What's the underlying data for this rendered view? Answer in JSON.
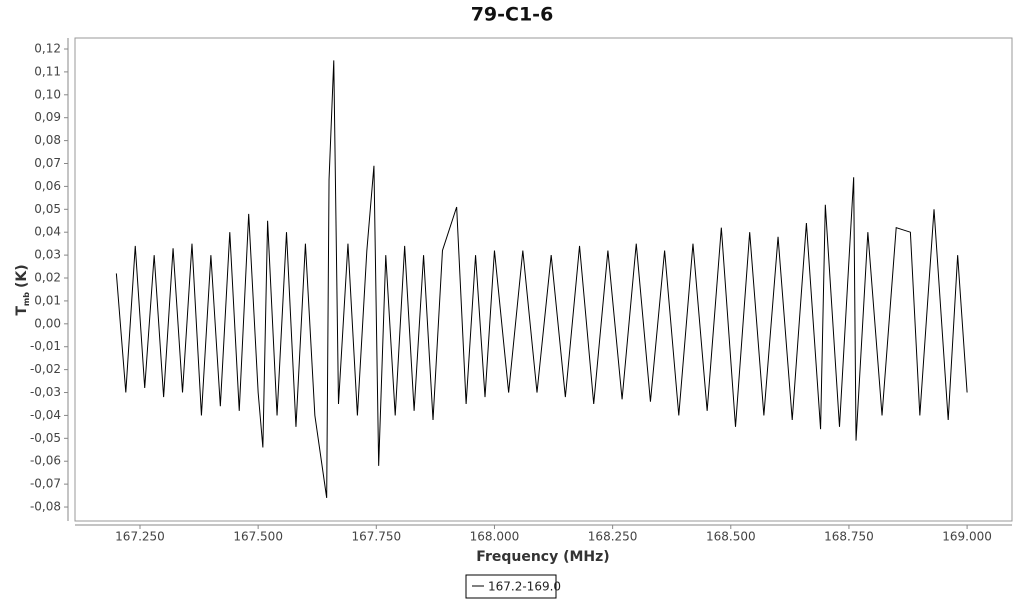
{
  "chart_data": {
    "type": "line",
    "title": "79-C1-6",
    "x_label": "Frequency (MHz)",
    "y_label": "T",
    "y_label_sub": "mb",
    "y_label_unit": "(K)",
    "xlim": [
      167.1125,
      169.095
    ],
    "ylim": [
      -0.0861,
      0.1248
    ],
    "xticks": [
      {
        "value": 167.25,
        "label": "167.250"
      },
      {
        "value": 167.5,
        "label": "167.500"
      },
      {
        "value": 167.75,
        "label": "167.750"
      },
      {
        "value": 168.0,
        "label": "168.000"
      },
      {
        "value": 168.25,
        "label": "168.250"
      },
      {
        "value": 168.5,
        "label": "168.500"
      },
      {
        "value": 168.75,
        "label": "168.750"
      },
      {
        "value": 169.0,
        "label": "169.000"
      }
    ],
    "yticks": [
      {
        "value": -0.08,
        "label": "-0,08"
      },
      {
        "value": -0.07,
        "label": "-0,07"
      },
      {
        "value": -0.06,
        "label": "-0,06"
      },
      {
        "value": -0.05,
        "label": "-0,05"
      },
      {
        "value": -0.04,
        "label": "-0,04"
      },
      {
        "value": -0.03,
        "label": "-0,03"
      },
      {
        "value": -0.02,
        "label": "-0,02"
      },
      {
        "value": -0.01,
        "label": "-0,01"
      },
      {
        "value": 0,
        "label": "0,00"
      },
      {
        "value": 0.01,
        "label": "0,01"
      },
      {
        "value": 0.02,
        "label": "0,02"
      },
      {
        "value": 0.03,
        "label": "0,03"
      },
      {
        "value": 0.04,
        "label": "0,04"
      },
      {
        "value": 0.05,
        "label": "0,05"
      },
      {
        "value": 0.06,
        "label": "0,06"
      },
      {
        "value": 0.07,
        "label": "0,07"
      },
      {
        "value": 0.08,
        "label": "0,08"
      },
      {
        "value": 0.09,
        "label": "0,09"
      },
      {
        "value": 0.1,
        "label": "0,10"
      },
      {
        "value": 0.11,
        "label": "0,11"
      },
      {
        "value": 0.12,
        "label": "0,12"
      }
    ],
    "grid": false,
    "legend": "bottom",
    "x": [
      167.2,
      167.22,
      167.24,
      167.26,
      167.28,
      167.3,
      167.32,
      167.34,
      167.36,
      167.38,
      167.4,
      167.42,
      167.44,
      167.46,
      167.48,
      167.5,
      167.51,
      167.52,
      167.54,
      167.56,
      167.58,
      167.6,
      167.62,
      167.645,
      167.65,
      167.66,
      167.67,
      167.69,
      167.71,
      167.73,
      167.745,
      167.755,
      167.77,
      167.79,
      167.81,
      167.83,
      167.85,
      167.87,
      167.89,
      167.92,
      167.94,
      167.96,
      167.98,
      168.0,
      168.03,
      168.06,
      168.09,
      168.12,
      168.15,
      168.18,
      168.21,
      168.24,
      168.27,
      168.3,
      168.33,
      168.36,
      168.39,
      168.42,
      168.45,
      168.48,
      168.51,
      168.54,
      168.57,
      168.6,
      168.63,
      168.66,
      168.69,
      168.7,
      168.73,
      168.76,
      168.765,
      168.79,
      168.82,
      168.85,
      168.88,
      168.9,
      168.93,
      168.96,
      168.98,
      169.0
    ],
    "series": [
      {
        "name": "167.2-169.0",
        "color": "#000000",
        "values": [
          0.022,
          -0.03,
          0.034,
          -0.028,
          0.03,
          -0.032,
          0.033,
          -0.03,
          0.035,
          -0.04,
          0.03,
          -0.036,
          0.04,
          -0.038,
          0.048,
          -0.03,
          -0.054,
          0.045,
          -0.04,
          0.04,
          -0.045,
          0.035,
          -0.04,
          -0.076,
          0.063,
          0.115,
          -0.035,
          0.035,
          -0.04,
          0.032,
          0.069,
          -0.062,
          0.03,
          -0.04,
          0.034,
          -0.038,
          0.03,
          -0.042,
          0.032,
          0.051,
          -0.035,
          0.03,
          -0.032,
          0.032,
          -0.03,
          0.032,
          -0.03,
          0.03,
          -0.032,
          0.034,
          -0.035,
          0.032,
          -0.033,
          0.035,
          -0.034,
          0.032,
          -0.04,
          0.035,
          -0.038,
          0.042,
          -0.045,
          0.04,
          -0.04,
          0.038,
          -0.042,
          0.044,
          -0.046,
          0.052,
          -0.045,
          0.064,
          -0.051,
          0.04,
          -0.04,
          0.042,
          0.04,
          -0.04,
          0.05,
          -0.042,
          0.03,
          -0.03
        ]
      }
    ]
  }
}
